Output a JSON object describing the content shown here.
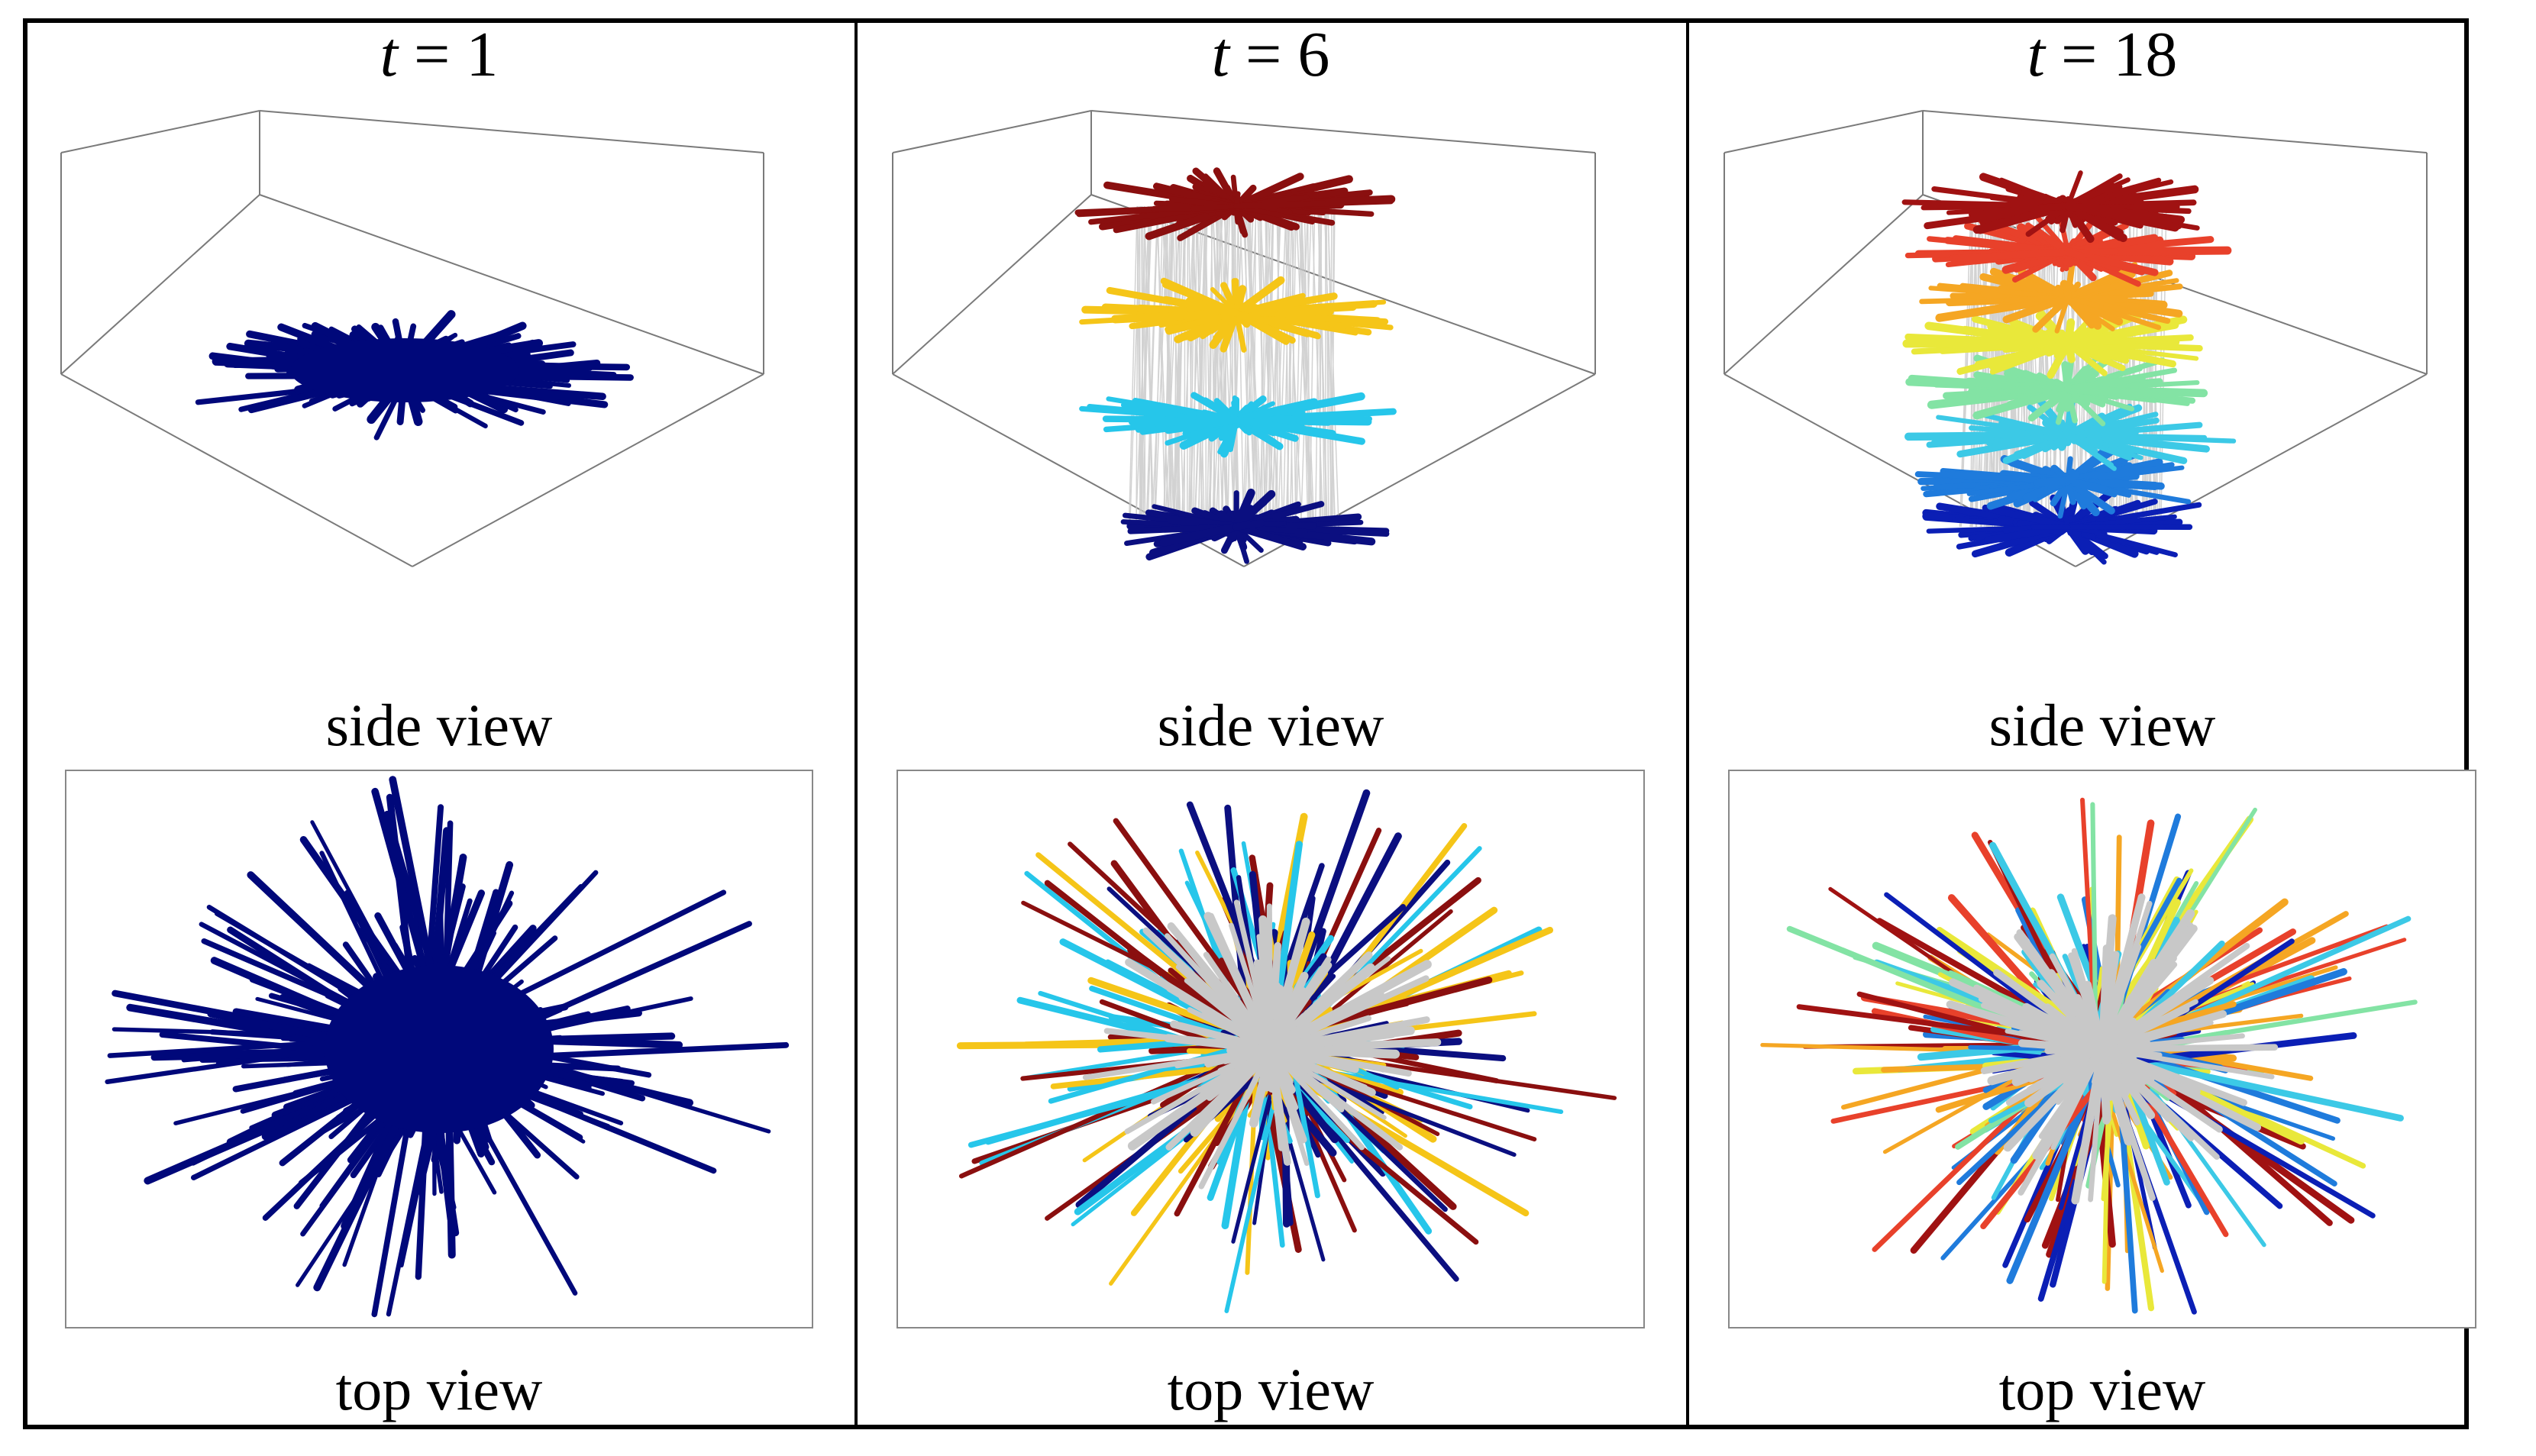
{
  "panels": [
    {
      "title_var": "t",
      "title_eq": " = ",
      "title_num": "1",
      "side_caption": "side view",
      "top_caption": "top view",
      "palette": [
        "#00087a"
      ]
    },
    {
      "title_var": "t",
      "title_eq": " = ",
      "title_num": "6",
      "side_caption": "side view",
      "top_caption": "top view",
      "palette": [
        "#0b0f80",
        "#26c6ea",
        "#f5c518",
        "#8a0f0f"
      ],
      "link_color": "#c8c8c8"
    },
    {
      "title_var": "t",
      "title_eq": " = ",
      "title_num": "18",
      "side_caption": "side view",
      "top_caption": "top view",
      "palette": [
        "#0b1fb5",
        "#1f7bdc",
        "#3cc9e6",
        "#83e3a4",
        "#e9e83a",
        "#f5a623",
        "#e8412b",
        "#a01212"
      ],
      "link_color": "#c8c8c8"
    }
  ]
}
